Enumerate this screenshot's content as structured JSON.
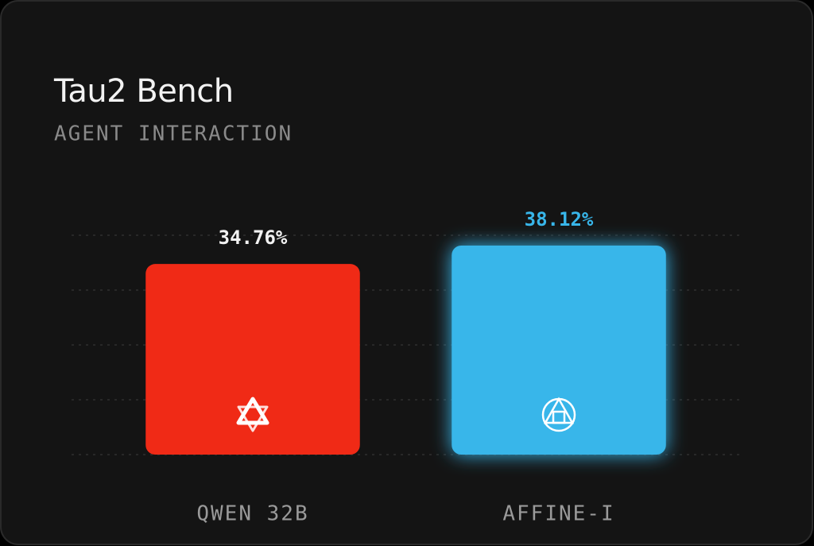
{
  "chart_data": {
    "type": "bar",
    "title": "Tau2 Bench",
    "subtitle": "AGENT INTERACTION",
    "categories": [
      "QWEN 32B",
      "AFFINE-I"
    ],
    "values": [
      34.76,
      38.12
    ],
    "value_labels": [
      "34.76%",
      "38.12%"
    ],
    "colors": [
      "#f02a16",
      "#38b6ea"
    ],
    "label_colors": [
      "#f2f2f2",
      "#38b6ea"
    ],
    "ylim": [
      0,
      40
    ],
    "yticks": [
      0,
      10,
      20,
      30,
      40
    ],
    "grid": true
  }
}
